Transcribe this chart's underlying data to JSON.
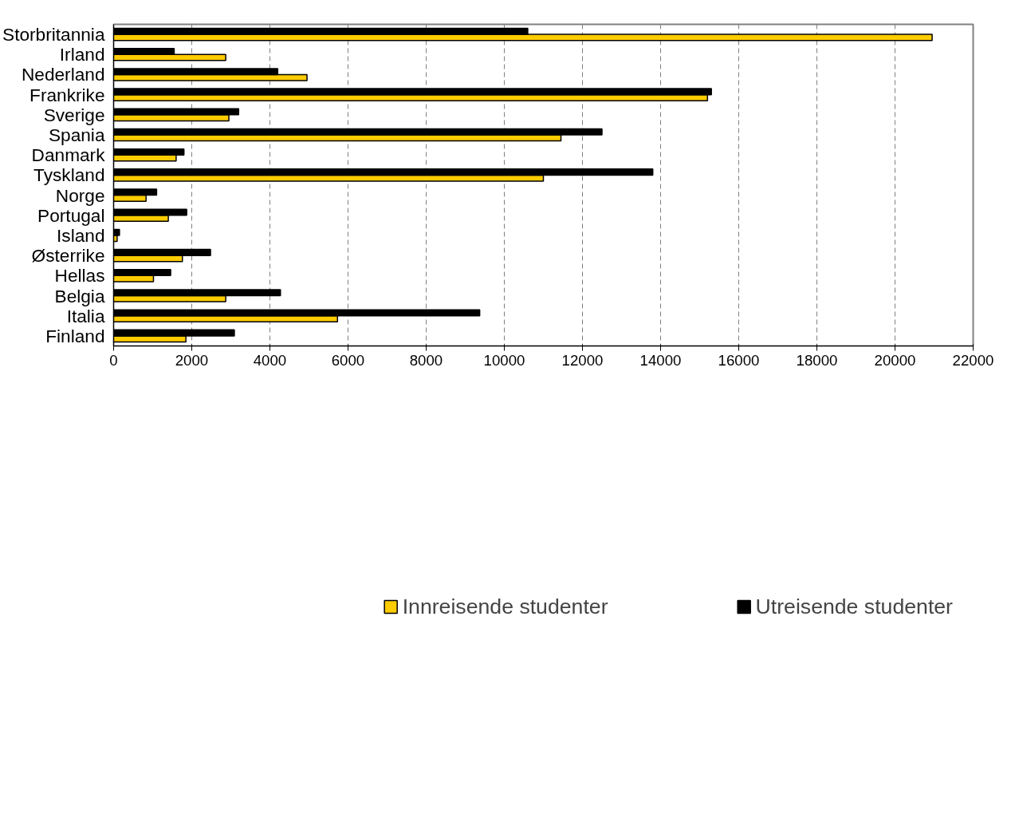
{
  "chart_data": {
    "type": "bar",
    "orientation": "horizontal",
    "categories": [
      "Storbritannia",
      "Irland",
      "Nederland",
      "Frankrike",
      "Sverige",
      "Spania",
      "Danmark",
      "Tyskland",
      "Norge",
      "Portugal",
      "Island",
      "Østerrike",
      "Hellas",
      "Belgia",
      "Italia",
      "Finland"
    ],
    "series": [
      {
        "name": "Innreisende studenter",
        "color": "#ffcc00",
        "values": [
          20950,
          2870,
          4950,
          15200,
          2950,
          11450,
          1600,
          11000,
          830,
          1400,
          90,
          1760,
          1020,
          2870,
          5730,
          1850
        ]
      },
      {
        "name": "Utreisende studenter",
        "color": "#000000",
        "values": [
          10600,
          1550,
          4200,
          15300,
          3200,
          12500,
          1800,
          13800,
          1100,
          1870,
          150,
          2480,
          1460,
          4270,
          9370,
          3090
        ]
      }
    ],
    "xlim": [
      0,
      22000
    ],
    "xticks": [
      0,
      2000,
      4000,
      6000,
      8000,
      10000,
      12000,
      14000,
      16000,
      18000,
      20000,
      22000
    ],
    "grid": "x",
    "legend": "bottom"
  }
}
